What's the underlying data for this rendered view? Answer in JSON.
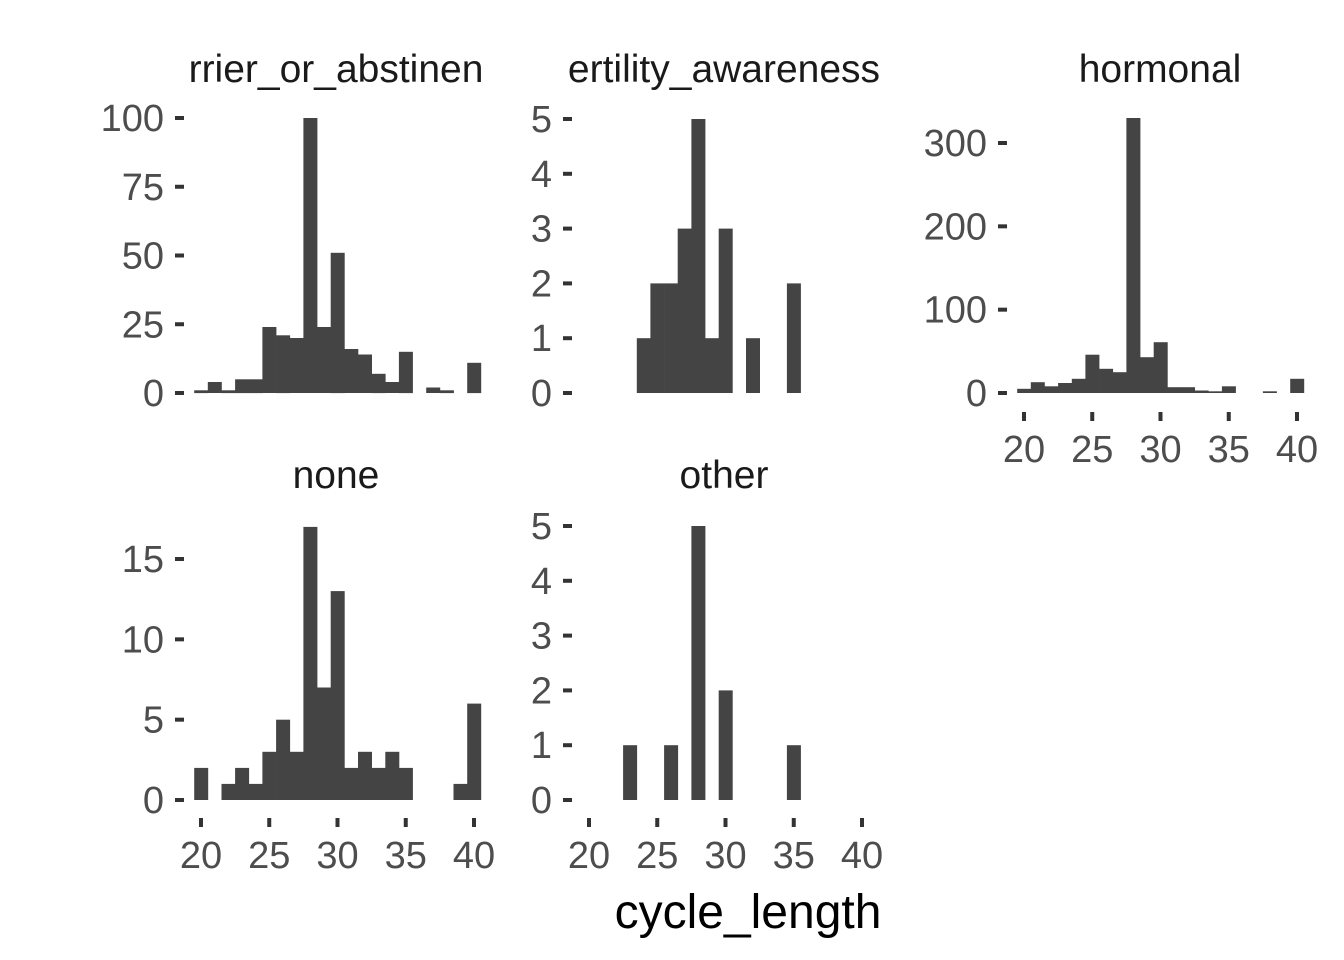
{
  "chart_data": {
    "type": "bar",
    "xlabel": "cycle_length",
    "ylabel": "",
    "bins": [
      20,
      21,
      22,
      23,
      24,
      25,
      26,
      27,
      28,
      29,
      30,
      31,
      32,
      33,
      34,
      35,
      36,
      37,
      38,
      39,
      40
    ],
    "bin_width": 1,
    "x_ticks": [
      "20",
      "25",
      "30",
      "35",
      "40"
    ],
    "panels": [
      {
        "name": "barrier_or_abstinence",
        "strip_label": "rrier_or_abstinen",
        "y_ticks": [
          "0",
          "25",
          "50",
          "75",
          "100"
        ],
        "ylim": [
          0,
          100
        ],
        "counts": [
          1,
          4,
          1,
          5,
          5,
          24,
          21,
          20,
          100,
          24,
          51,
          16,
          14,
          7,
          4,
          15,
          0,
          2,
          1,
          0,
          11
        ]
      },
      {
        "name": "fertility_awareness",
        "strip_label": "ertility_awareness",
        "y_ticks": [
          "0",
          "1",
          "2",
          "3",
          "4",
          "5"
        ],
        "ylim": [
          0,
          5
        ],
        "counts": [
          0,
          0,
          0,
          0,
          1,
          2,
          2,
          3,
          5,
          1,
          3,
          0,
          1,
          0,
          0,
          2,
          0,
          0,
          0,
          0,
          0
        ]
      },
      {
        "name": "hormonal",
        "strip_label": "hormonal",
        "y_ticks": [
          "0",
          "100",
          "200",
          "300"
        ],
        "ylim": [
          0,
          300
        ],
        "counts": [
          5,
          13,
          8,
          12,
          17,
          46,
          29,
          25,
          330,
          43,
          61,
          7,
          7,
          3,
          2,
          8,
          0,
          0,
          2,
          0,
          17
        ]
      },
      {
        "name": "none",
        "strip_label": "none",
        "y_ticks": [
          "0",
          "5",
          "10",
          "15"
        ],
        "ylim": [
          0,
          15
        ],
        "counts": [
          2,
          0,
          1,
          2,
          1,
          3,
          5,
          3,
          17,
          7,
          13,
          2,
          3,
          2,
          3,
          2,
          0,
          0,
          0,
          1,
          6
        ]
      },
      {
        "name": "other",
        "strip_label": "other",
        "y_ticks": [
          "0",
          "1",
          "2",
          "3",
          "4",
          "5"
        ],
        "ylim": [
          0,
          5
        ],
        "counts": [
          0,
          0,
          0,
          1,
          0,
          0,
          1,
          0,
          5,
          0,
          2,
          0,
          0,
          0,
          0,
          1,
          0,
          0,
          0,
          0,
          0
        ]
      }
    ]
  }
}
